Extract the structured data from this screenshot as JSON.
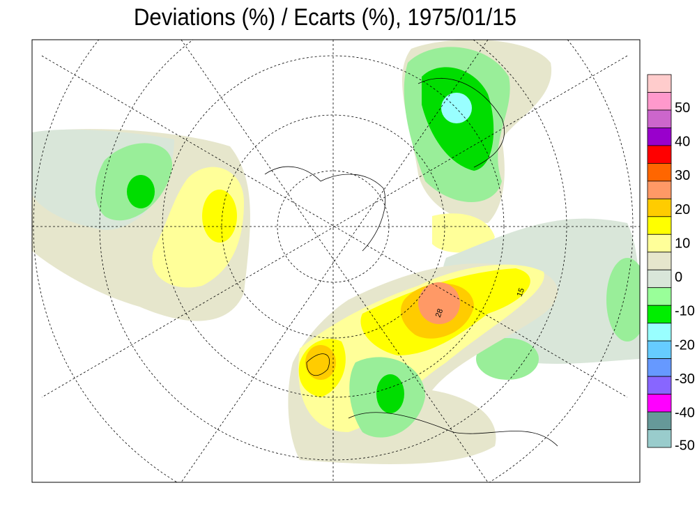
{
  "header": {
    "title": "Deviations (%) / Ecarts (%), 1975/01/15"
  },
  "map": {
    "contour_labels": [
      "28",
      "15"
    ]
  },
  "legend": {
    "colors": [
      "#ffcccc",
      "#ff99cc",
      "#cc66cc",
      "#9900cc",
      "#ff0000",
      "#ff6600",
      "#ff9966",
      "#ffcc00",
      "#ffff00",
      "#ffff99",
      "#e6e6cc",
      "#d9e6d9",
      "#99ff99",
      "#00ee00",
      "#99ffff",
      "#66ccff",
      "#6699ff",
      "#8866ff",
      "#ff00ff",
      "#669999",
      "#99cccc"
    ],
    "ticks": [
      50,
      40,
      30,
      20,
      10,
      0,
      -10,
      -20,
      -30,
      -40,
      -50
    ]
  }
}
